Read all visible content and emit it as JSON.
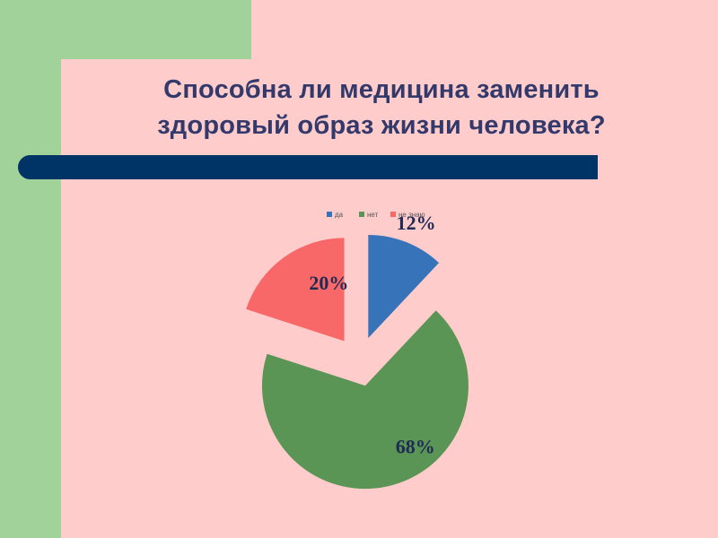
{
  "slide": {
    "title_line1": "Способна ли медицина заменить",
    "title_line2": "здоровый образ жизни человека?",
    "colors": {
      "background": "#ffcccc",
      "side_band": "#a0d29a",
      "divider": "#003366",
      "title": "#333a6b"
    }
  },
  "chart_data": {
    "type": "pie",
    "title": "",
    "legend_position": "top",
    "slices": [
      {
        "name": "да",
        "value": 12,
        "label": "12%",
        "color": "#3673b9"
      },
      {
        "name": "нет",
        "value": 68,
        "label": "68%",
        "color": "#5a9556"
      },
      {
        "name": "не знаю",
        "value": 20,
        "label": "20%",
        "color": "#f86868"
      }
    ]
  }
}
